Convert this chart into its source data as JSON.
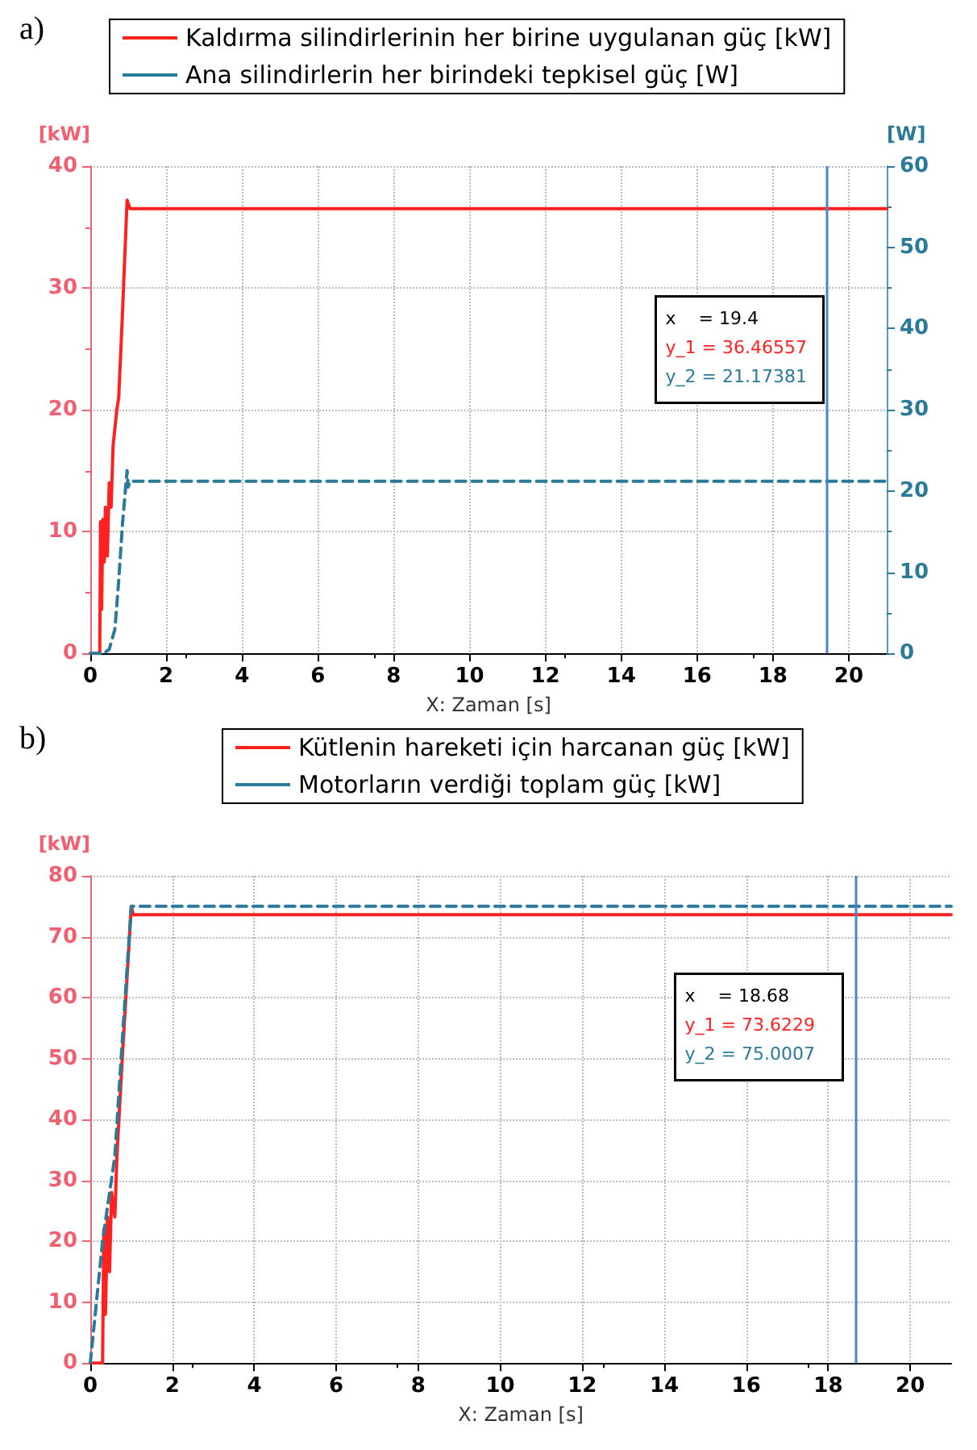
{
  "chart_data": [
    {
      "type": "line",
      "title": "a)",
      "xlabel": "X: Zaman [s]",
      "ylabel": "[kW]",
      "y2label": "[W]",
      "xlim": [
        0,
        21
      ],
      "xticks": [
        0,
        2,
        4,
        6,
        8,
        10,
        12,
        14,
        16,
        18,
        20
      ],
      "ylim": [
        0,
        40
      ],
      "yticks": [
        0,
        10,
        20,
        30,
        40
      ],
      "y2lim": [
        0,
        60
      ],
      "y2ticks": [
        0,
        10,
        20,
        30,
        40,
        50,
        60
      ],
      "grid": true,
      "legend": "top",
      "marker": "none",
      "series": [
        {
          "name": "Kaldırma silindirlerinin her birine uygulanan güç [kW]",
          "color": "#ff2020",
          "line_style": "solid",
          "x": [
            0,
            0.25,
            0.27,
            0.3,
            0.33,
            0.37,
            0.4,
            0.45,
            0.5,
            0.55,
            0.6,
            0.7,
            0.75,
            0.85,
            0.97,
            1.05,
            21
          ],
          "values": [
            0,
            0,
            10.8,
            3.6,
            11,
            7.5,
            12,
            8,
            14,
            12,
            17,
            20,
            21,
            28,
            37.2,
            36.5,
            36.5
          ]
        },
        {
          "name": "Ana silindirlerin her birindeki tepkisel güç [W]",
          "color": "#2a7a9a",
          "line_style": "dashed",
          "axis": "y2",
          "x": [
            0,
            0.35,
            0.5,
            0.65,
            0.75,
            0.85,
            0.97,
            1.0,
            1.05,
            21
          ],
          "values": [
            0,
            0,
            0.5,
            3,
            9,
            16,
            22.5,
            20.5,
            21.2,
            21.2
          ]
        }
      ],
      "ref_lines": [
        {
          "axis": "x",
          "value": 19.4,
          "color": "#4a86c8"
        }
      ],
      "annotations": [
        "x    = 19.4",
        "y_1 = 36.46557",
        "y_2 = 21.17381"
      ]
    },
    {
      "type": "line",
      "title": "b)",
      "xlabel": "X: Zaman [s]",
      "ylabel": "[kW]",
      "xlim": [
        0,
        21
      ],
      "xticks": [
        0,
        2,
        4,
        6,
        8,
        10,
        12,
        14,
        16,
        18,
        20
      ],
      "ylim": [
        0,
        80
      ],
      "yticks": [
        0,
        10,
        20,
        30,
        40,
        50,
        60,
        70,
        80
      ],
      "grid": true,
      "legend": "top",
      "marker": "none",
      "series": [
        {
          "name": "Kütlenin hareketi için harcanan güç [kW]",
          "color": "#ff2020",
          "line_style": "solid",
          "x": [
            0,
            0.3,
            0.33,
            0.37,
            0.42,
            0.47,
            0.52,
            0.6,
            0.65,
            0.78,
            1.0,
            1.05,
            21
          ],
          "values": [
            0,
            0,
            22,
            8,
            24,
            15,
            28,
            24,
            34,
            50,
            75,
            73.6,
            73.6
          ]
        },
        {
          "name": "Motorların verdiği toplam güç [kW]",
          "color": "#2a7a9a",
          "line_style": "dashed",
          "x": [
            0,
            0.3,
            0.6,
            0.8,
            1.0,
            21
          ],
          "values": [
            0,
            20,
            34,
            55,
            75,
            75
          ]
        }
      ],
      "ref_lines": [
        {
          "axis": "x",
          "value": 18.68,
          "color": "#4a86c8"
        }
      ],
      "annotations": [
        "x    = 18.68",
        "y_1 = 73.6229",
        "y_2 = 75.0007"
      ]
    }
  ]
}
